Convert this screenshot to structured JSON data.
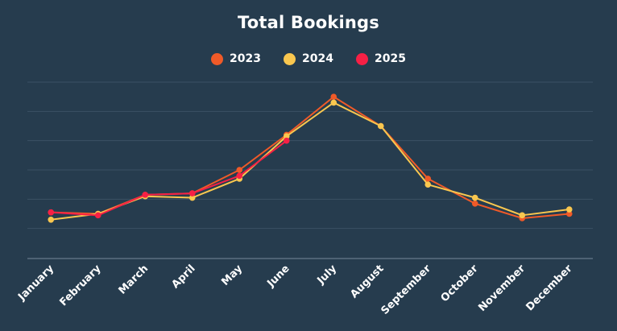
{
  "chart_data": {
    "type": "line",
    "title": "Total Bookings",
    "xlabel": "",
    "ylabel": "",
    "categories": [
      "January",
      "February",
      "March",
      "April",
      "May",
      "June",
      "July",
      "August",
      "September",
      "October",
      "November",
      "December"
    ],
    "ylim": [
      0,
      60
    ],
    "grid": true,
    "legend_position": "top-center",
    "series": [
      {
        "name": "2023",
        "color": "#f05a28",
        "values": [
          15.5,
          15,
          21.5,
          22,
          30,
          42,
          55,
          45,
          27,
          18.5,
          13.5,
          15
        ]
      },
      {
        "name": "2024",
        "color": "#f9c74f",
        "values": [
          13,
          15,
          21,
          20.5,
          27,
          41.5,
          53,
          45,
          25,
          20.5,
          14.5,
          16.5
        ]
      },
      {
        "name": "2025",
        "color": "#f72045",
        "values": [
          15.5,
          14.5,
          21.5,
          22,
          28,
          40,
          null,
          null,
          null,
          null,
          null,
          null
        ]
      }
    ]
  }
}
